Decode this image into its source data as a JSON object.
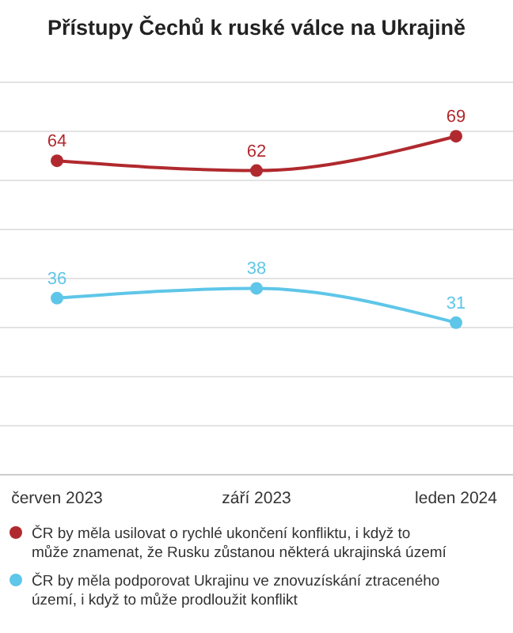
{
  "chart_data": {
    "type": "line",
    "title": "Přístupy Čechů k ruské válce na Ukrajině",
    "categories": [
      "červen 2023",
      "září 2023",
      "leden 2024"
    ],
    "series": [
      {
        "name": "ČR by měla usilovat o rychlé ukončení konfliktu, i když to může znamenat, že Rusku zůstanou některá ukrajinská území",
        "color": "#b0292e",
        "values": [
          64,
          62,
          69
        ]
      },
      {
        "name": "ČR by měla podporovat Ukrajinu ve znovuzískání ztraceného území, i když to může prodloužit konflikt",
        "color": "#5ec6e8",
        "values": [
          36,
          38,
          31
        ]
      }
    ],
    "ylim": [
      0,
      80
    ],
    "yticks": [
      {
        "value": 0,
        "label": null
      },
      {
        "value": 10,
        "label": null
      },
      {
        "value": 20,
        "label": null
      },
      {
        "value": 30,
        "label": null
      },
      {
        "value": 40,
        "label": null
      },
      {
        "value": 50,
        "label": null
      },
      {
        "value": 60,
        "label": null
      },
      {
        "value": 70,
        "label": null
      },
      {
        "value": 80,
        "label": null
      }
    ],
    "tick_labels": "x",
    "grid": "y",
    "data_labels": true,
    "marker": "circle",
    "legend": "bottom"
  }
}
